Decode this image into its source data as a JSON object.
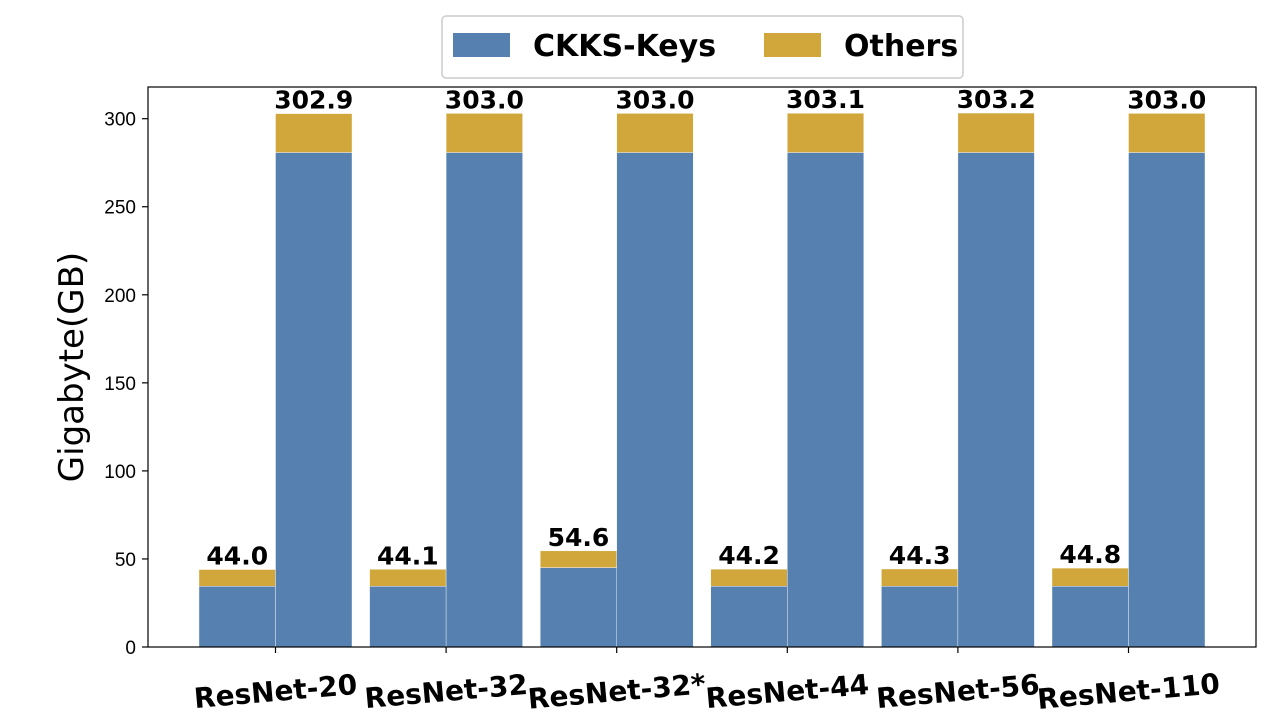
{
  "chart_data": {
    "type": "bar",
    "stacked": true,
    "grouped": true,
    "categories": [
      "ResNet-20",
      "ResNet-32",
      "ResNet-32*",
      "ResNet-44",
      "ResNet-56",
      "ResNet-110"
    ],
    "ylabel": "Gigabyte(GB)",
    "xlabel": "",
    "ylim": [
      0,
      318
    ],
    "yticks": [
      0,
      50,
      100,
      150,
      200,
      250,
      300
    ],
    "grid": false,
    "legend": {
      "placement": "top-center",
      "entries": [
        {
          "name": "CKKS-Keys",
          "color": "#5580b0"
        },
        {
          "name": "Others",
          "color": "#d1a73b"
        }
      ]
    },
    "groups": [
      {
        "bars": [
          {
            "label": "44.0",
            "ckks": 34.5,
            "others": 9.5
          },
          {
            "label": "302.9",
            "ckks": 280.8,
            "others": 22.1
          }
        ]
      },
      {
        "bars": [
          {
            "label": "44.1",
            "ckks": 34.5,
            "others": 9.6
          },
          {
            "label": "303.0",
            "ckks": 280.8,
            "others": 22.2
          }
        ]
      },
      {
        "bars": [
          {
            "label": "54.6",
            "ckks": 45.1,
            "others": 9.5
          },
          {
            "label": "303.0",
            "ckks": 280.8,
            "others": 22.2
          }
        ]
      },
      {
        "bars": [
          {
            "label": "44.2",
            "ckks": 34.5,
            "others": 9.7
          },
          {
            "label": "303.1",
            "ckks": 280.8,
            "others": 22.3
          }
        ]
      },
      {
        "bars": [
          {
            "label": "44.3",
            "ckks": 34.5,
            "others": 9.8
          },
          {
            "label": "303.2",
            "ckks": 280.8,
            "others": 22.4
          }
        ]
      },
      {
        "bars": [
          {
            "label": "44.8",
            "ckks": 34.5,
            "others": 10.3
          },
          {
            "label": "303.0",
            "ckks": 280.8,
            "others": 22.2
          }
        ]
      }
    ]
  }
}
